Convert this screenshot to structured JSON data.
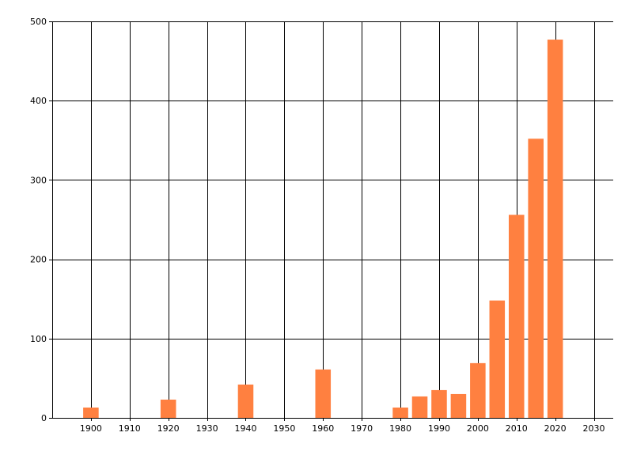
{
  "chart_data": {
    "type": "bar",
    "title": "",
    "xlabel": "",
    "ylabel": "",
    "x": [
      1900,
      1920,
      1940,
      1960,
      1980,
      1985,
      1990,
      1995,
      2000,
      2005,
      2010,
      2015,
      2020
    ],
    "values": [
      13,
      23,
      42,
      61,
      13,
      27,
      35,
      30,
      69,
      148,
      256,
      352,
      477
    ],
    "xlim": [
      1890,
      2035
    ],
    "ylim": [
      0,
      500
    ],
    "xticks": [
      1900,
      1910,
      1920,
      1930,
      1940,
      1950,
      1960,
      1970,
      1980,
      1990,
      2000,
      2010,
      2020,
      2030
    ],
    "yticks": [
      0,
      100,
      200,
      300,
      400,
      500
    ],
    "bar_width_years": 4,
    "grid": true,
    "bar_color": "#FF8040"
  }
}
